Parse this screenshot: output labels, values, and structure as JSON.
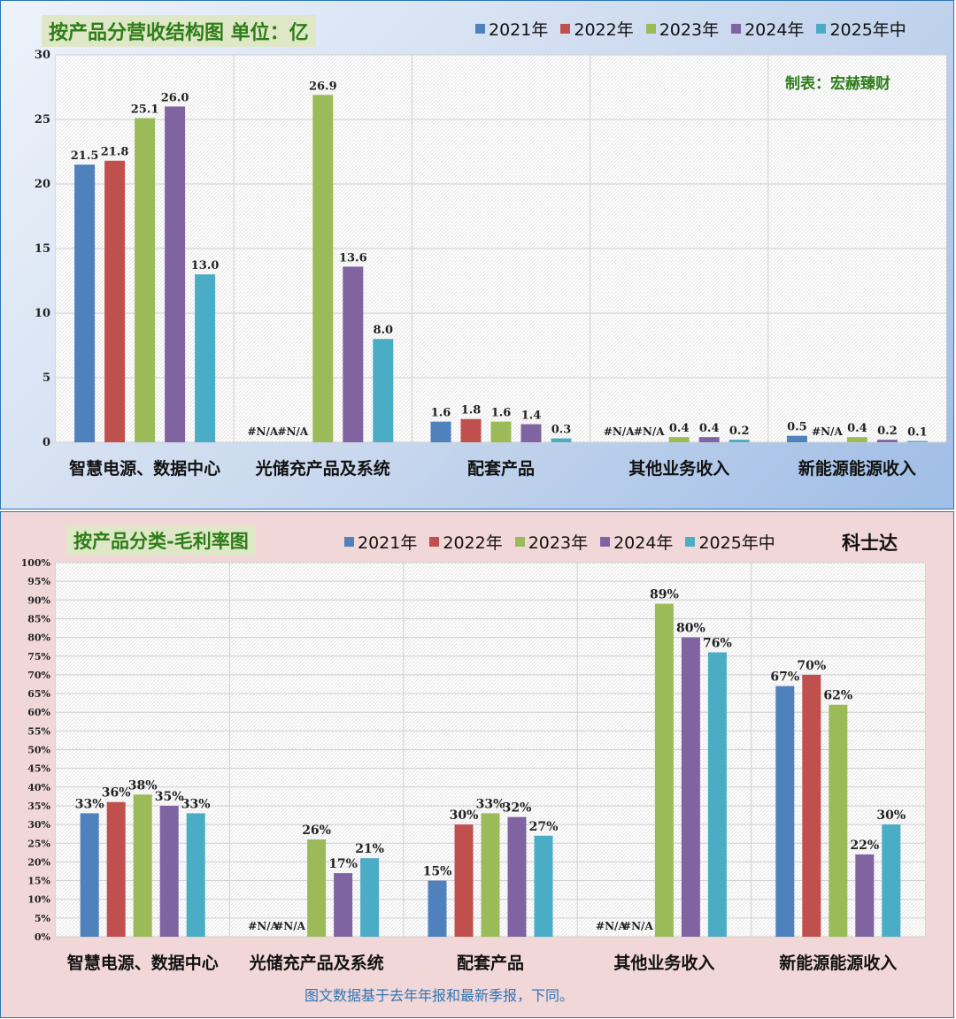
{
  "colors": {
    "2021年": "#4f81bd",
    "2022年": "#c0504d",
    "2023年": "#9bbb59",
    "2024年": "#8064a2",
    "2025年中": "#4bacc6"
  },
  "chart_data": [
    {
      "type": "bar",
      "title": "按产品分营收结构图 单位：亿",
      "credit": "制表：宏赫臻财",
      "categories": [
        "智慧电源、数据中心",
        "光储充产品及系统",
        "配套产品",
        "其他业务收入",
        "新能源能源收入"
      ],
      "ylim": [
        0,
        30
      ],
      "yticks": [
        "0",
        "5",
        "10",
        "15",
        "20",
        "25",
        "30"
      ],
      "legend_position": "top-right",
      "series": [
        {
          "name": "2021年",
          "values": [
            21.5,
            null,
            1.6,
            null,
            0.5
          ],
          "labels": [
            "21.5",
            "#N/A",
            "1.6",
            "#N/A",
            "0.5"
          ]
        },
        {
          "name": "2022年",
          "values": [
            21.8,
            null,
            1.8,
            null,
            null
          ],
          "labels": [
            "21.8",
            "#N/A",
            "1.8",
            "#N/A",
            "#N/A"
          ]
        },
        {
          "name": "2023年",
          "values": [
            25.1,
            26.9,
            1.6,
            0.4,
            0.4
          ],
          "labels": [
            "25.1",
            "26.9",
            "1.6",
            "0.4",
            "0.4"
          ]
        },
        {
          "name": "2024年",
          "values": [
            26.0,
            13.6,
            1.4,
            0.4,
            0.2
          ],
          "labels": [
            "26.0",
            "13.6",
            "1.4",
            "0.4",
            "0.2"
          ]
        },
        {
          "name": "2025年中",
          "values": [
            13.0,
            8.0,
            0.3,
            0.2,
            0.1
          ],
          "labels": [
            "13.0",
            "8.0",
            "0.3",
            "0.2",
            "0.1"
          ]
        }
      ]
    },
    {
      "type": "bar",
      "title": "按产品分类-毛利率图",
      "company": "科士达",
      "footnote": "图文数据基于去年年报和最新季报，下同。",
      "categories": [
        "智慧电源、数据中心",
        "光储充产品及系统",
        "配套产品",
        "其他业务收入",
        "新能源能源收入"
      ],
      "ylim": [
        0,
        100
      ],
      "yticks": [
        "0%",
        "5%",
        "10%",
        "15%",
        "20%",
        "25%",
        "30%",
        "35%",
        "40%",
        "45%",
        "50%",
        "55%",
        "60%",
        "65%",
        "70%",
        "75%",
        "80%",
        "85%",
        "90%",
        "95%",
        "100%"
      ],
      "legend_position": "top",
      "series": [
        {
          "name": "2021年",
          "values": [
            33,
            null,
            15,
            null,
            67
          ],
          "labels": [
            "33%",
            "#N/A",
            "15%",
            "#N/A",
            "67%"
          ]
        },
        {
          "name": "2022年",
          "values": [
            36,
            null,
            30,
            null,
            70
          ],
          "labels": [
            "36%",
            "#N/A",
            "30%",
            "#N/A",
            "70%"
          ]
        },
        {
          "name": "2023年",
          "values": [
            38,
            26,
            33,
            89,
            62
          ],
          "labels": [
            "38%",
            "26%",
            "33%",
            "89%",
            "62%"
          ]
        },
        {
          "name": "2024年",
          "values": [
            35,
            17,
            32,
            80,
            22
          ],
          "labels": [
            "35%",
            "17%",
            "32%",
            "80%",
            "22%"
          ]
        },
        {
          "name": "2025年中",
          "values": [
            33,
            21,
            27,
            76,
            30
          ],
          "labels": [
            "33%",
            "21%",
            "27%",
            "76%",
            "30%"
          ]
        }
      ]
    }
  ]
}
